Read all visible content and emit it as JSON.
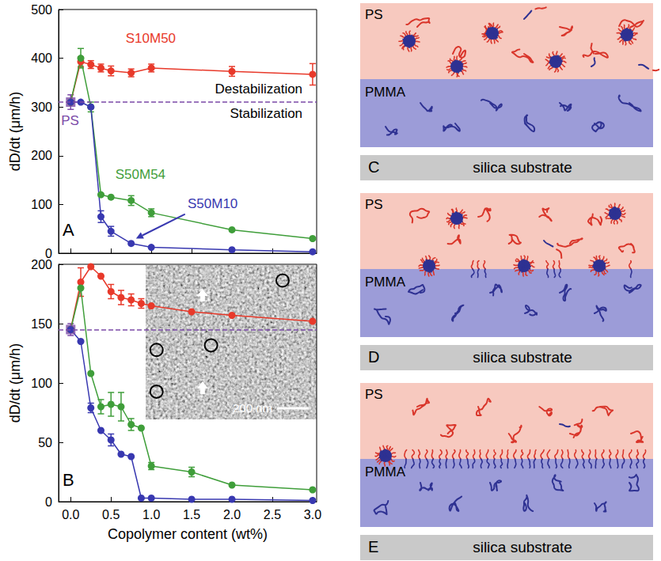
{
  "chart_data": [
    {
      "type": "line",
      "panel_label": "A",
      "ylabel": "dD/dt (μm/h)",
      "x": [
        0,
        0.125,
        0.25,
        0.375,
        0.5,
        0.75,
        1,
        2,
        3
      ],
      "series": [
        {
          "name": "PS",
          "type": "scatter",
          "color": "#7b4aa8",
          "marker": "square",
          "line_style": "dashed",
          "values": [
            310,
            null,
            null,
            null,
            null,
            null,
            null,
            null,
            null
          ],
          "errors": [
            15,
            null,
            null,
            null,
            null,
            null,
            null,
            null,
            null
          ]
        },
        {
          "name": "S10M50",
          "color": "#e8392a",
          "marker": "circle",
          "values": [
            310,
            393,
            387,
            380,
            374,
            370,
            380,
            373,
            367
          ],
          "errors": [
            null,
            10,
            8,
            8,
            10,
            8,
            8,
            10,
            22
          ]
        },
        {
          "name": "S50M54",
          "color": "#3f9e3a",
          "marker": "circle",
          "values": [
            310,
            400,
            300,
            120,
            115,
            108,
            83,
            48,
            30
          ],
          "errors": [
            null,
            20,
            10,
            null,
            null,
            10,
            8,
            null,
            null
          ]
        },
        {
          "name": "S50M10",
          "color": "#3838b0",
          "marker": "circle",
          "values": [
            310,
            310,
            300,
            75,
            45,
            20,
            12,
            7,
            3
          ],
          "errors": [
            null,
            null,
            null,
            12,
            10,
            null,
            null,
            null,
            null
          ]
        }
      ],
      "xlim": [
        -0.15,
        3.05
      ],
      "xticks": [
        {
          "value": 0,
          "label": "0.0"
        },
        0.5,
        {
          "value": 1,
          "label": "1.0"
        },
        1.5,
        {
          "value": 2,
          "label": "2.0"
        },
        2.5,
        {
          "value": 3,
          "label": "3.0"
        }
      ],
      "ylim": [
        0,
        500
      ],
      "yticks": [
        0,
        100,
        200,
        300,
        400,
        500
      ],
      "tick_labels": "y",
      "grid": false,
      "annotations": [
        "Destabilization",
        "Stabilization"
      ]
    },
    {
      "type": "line",
      "panel_label": "B",
      "xlabel": "Copolymer content (wt%)",
      "ylabel": "dD/dt (μm/h)",
      "x": [
        0,
        0.125,
        0.25,
        0.375,
        0.5,
        0.625,
        0.75,
        0.875,
        1,
        1.5,
        2,
        3
      ],
      "series": [
        {
          "type": "scatter",
          "color": "#7b4aa8",
          "marker": "square",
          "line_style": "dashed",
          "values": [
            145,
            null,
            null,
            null,
            null,
            null,
            null,
            null,
            null,
            null,
            null,
            null
          ],
          "errors": [
            5,
            null,
            null,
            null,
            null,
            null,
            null,
            null,
            null,
            null,
            null,
            null
          ]
        },
        {
          "color": "#e8392a",
          "marker": "circle",
          "values": [
            145,
            185,
            198,
            190,
            177,
            172,
            170,
            167,
            165,
            160,
            157,
            152
          ],
          "errors": [
            null,
            12,
            null,
            null,
            6,
            6,
            5,
            4,
            null,
            null,
            null,
            null
          ]
        },
        {
          "color": "#3f9e3a",
          "marker": "circle",
          "values": [
            145,
            180,
            108,
            80,
            82,
            80,
            65,
            62,
            30,
            25,
            14,
            10
          ],
          "errors": [
            null,
            null,
            null,
            6,
            10,
            12,
            5,
            null,
            3,
            4,
            null,
            null
          ]
        },
        {
          "color": "#3838b0",
          "marker": "circle",
          "values": [
            145,
            135,
            79,
            60,
            52,
            40,
            38,
            3,
            3,
            2,
            2,
            1
          ],
          "errors": [
            null,
            null,
            4,
            null,
            5,
            null,
            null,
            null,
            null,
            null,
            null,
            null
          ]
        }
      ],
      "xlim": [
        -0.15,
        3.05
      ],
      "xticks": [
        {
          "value": 0,
          "label": "0.0"
        },
        0.5,
        {
          "value": 1,
          "label": "1.0"
        },
        1.5,
        {
          "value": 2,
          "label": "2.0"
        },
        2.5,
        {
          "value": 3,
          "label": "3.0"
        }
      ],
      "ylim": [
        0,
        200
      ],
      "yticks": [
        0,
        50,
        100,
        150,
        200
      ],
      "grid": false,
      "inset": {
        "scale_bar": "200 nm"
      }
    }
  ],
  "diagrams": [
    {
      "label": "C",
      "layers": [
        "PS",
        "PMMA"
      ],
      "substrate": "silica substrate"
    },
    {
      "label": "D",
      "layers": [
        "PS",
        "PMMA"
      ],
      "substrate": "silica substrate"
    },
    {
      "label": "E",
      "layers": [
        "PS",
        "PMMA"
      ],
      "substrate": "silica substrate"
    }
  ]
}
